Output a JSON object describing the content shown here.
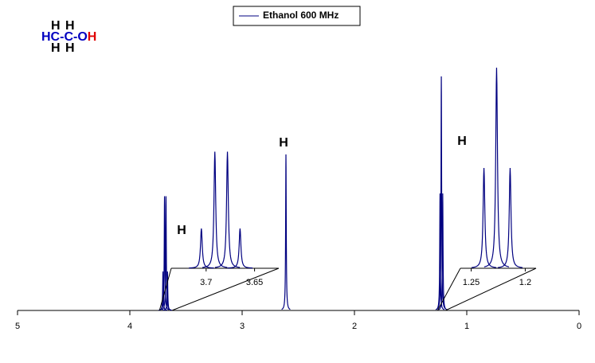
{
  "chart_data": [
    {
      "type": "spectrum",
      "xlim": [
        5,
        0
      ],
      "xticks": [
        5,
        4,
        3,
        2,
        1,
        0
      ],
      "ylim": [
        0,
        100
      ],
      "series": [
        {
          "name": "Ethanol 600 MHz",
          "color": "#000080",
          "x": [
            3.705,
            3.691,
            3.678,
            3.665,
            2.61,
            1.238,
            1.2265,
            1.214
          ],
          "values": [
            14,
            41,
            41,
            14,
            56,
            42,
            84,
            42
          ]
        }
      ],
      "annotations": [
        {
          "text": "H",
          "color": "#00e000"
        },
        {
          "text": "H",
          "color": "#e00000"
        },
        {
          "text": "H",
          "color": "#000090"
        }
      ]
    },
    {
      "type": "spectrum",
      "xlim": [
        3.736,
        3.625
      ],
      "xticks": [
        3.7,
        3.65
      ],
      "ylim": [
        0,
        84
      ],
      "series": [
        {
          "color": "#000080",
          "x": [
            3.7049,
            3.691,
            3.678,
            3.665
          ],
          "values": [
            14,
            41,
            41,
            14
          ]
        }
      ]
    },
    {
      "type": "spectrum",
      "xlim": [
        1.26,
        1.19
      ],
      "xticks": [
        1.25,
        1.2
      ],
      "ylim": [
        0,
        100
      ],
      "series": [
        {
          "color": "#000080",
          "x": [
            1.2382,
            1.2265,
            1.214
          ],
          "values": [
            42,
            84,
            42
          ]
        }
      ]
    }
  ],
  "structure": [
    [
      {
        "text": "H",
        "color": "#0000c0"
      },
      {
        "text": "H",
        "color": "#00e000"
      }
    ],
    [
      {
        "text": "HC-C-O",
        "color": "#0000c0"
      },
      {
        "text": "H",
        "color": "#e00000"
      }
    ],
    [
      {
        "text": "H",
        "color": "#0000c0"
      },
      {
        "text": "H",
        "color": "#00e000"
      }
    ]
  ]
}
